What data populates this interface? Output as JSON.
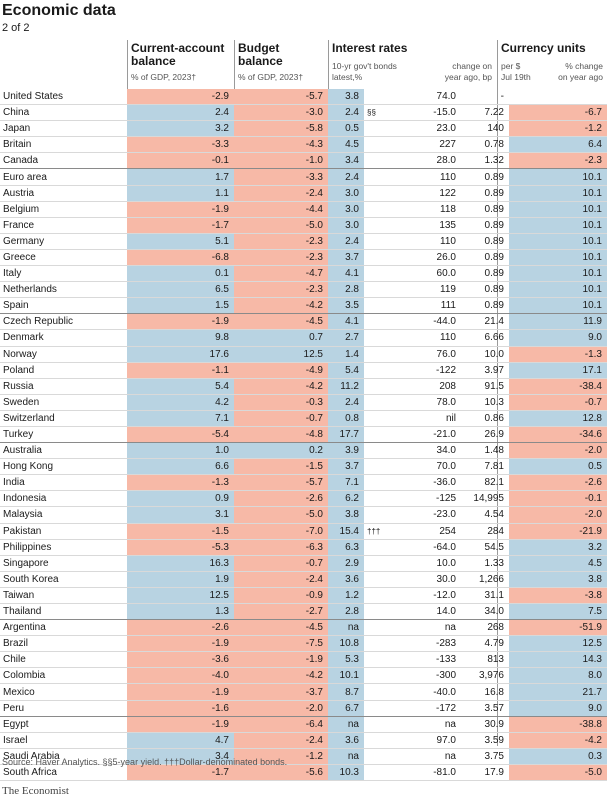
{
  "title": "Economic data",
  "subtitle": "2 of 2",
  "headers": {
    "current_account": "Current-account balance",
    "current_account_sub": "% of GDP, 2023†",
    "budget": "Budget balance",
    "budget_sub": "% of GDP, 2023†",
    "interest": "Interest rates",
    "interest_sub1": "10-yr gov't bonds",
    "interest_sub1b": "latest,%",
    "interest_sub2": "change on",
    "interest_sub2b": "year ago, bp",
    "currency": "Currency units",
    "currency_sub1": "per $",
    "currency_sub1b": "Jul 19th",
    "currency_sub2": "% change",
    "currency_sub2b": "on year ago"
  },
  "rows": [
    {
      "country": "United States",
      "ca": "-2.9",
      "budget": "-5.7",
      "bond": "3.8",
      "note": "",
      "bond_change": "74.0",
      "fx": "-",
      "fx_change": ""
    },
    {
      "country": "China",
      "ca": "2.4",
      "budget": "-3.0",
      "bond": "2.4",
      "note": "§§",
      "bond_change": "-15.0",
      "fx": "7.22",
      "fx_change": "-6.7"
    },
    {
      "country": "Japan",
      "ca": "3.2",
      "budget": "-5.8",
      "bond": "0.5",
      "note": "",
      "bond_change": "23.0",
      "fx": "140",
      "fx_change": "-1.2"
    },
    {
      "country": "Britain",
      "ca": "-3.3",
      "budget": "-4.3",
      "bond": "4.5",
      "note": "",
      "bond_change": "227",
      "fx": "0.78",
      "fx_change": "6.4"
    },
    {
      "country": "Canada",
      "ca": "-0.1",
      "budget": "-1.0",
      "bond": "3.4",
      "note": "",
      "bond_change": "28.0",
      "fx": "1.32",
      "fx_change": "-2.3"
    },
    {
      "country": "Euro area",
      "ca": "1.7",
      "budget": "-3.3",
      "bond": "2.4",
      "note": "",
      "bond_change": "110",
      "fx": "0.89",
      "fx_change": "10.1"
    },
    {
      "country": "Austria",
      "ca": "1.1",
      "budget": "-2.4",
      "bond": "3.0",
      "note": "",
      "bond_change": "122",
      "fx": "0.89",
      "fx_change": "10.1"
    },
    {
      "country": "Belgium",
      "ca": "-1.9",
      "budget": "-4.4",
      "bond": "3.0",
      "note": "",
      "bond_change": "118",
      "fx": "0.89",
      "fx_change": "10.1"
    },
    {
      "country": "France",
      "ca": "-1.7",
      "budget": "-5.0",
      "bond": "3.0",
      "note": "",
      "bond_change": "135",
      "fx": "0.89",
      "fx_change": "10.1"
    },
    {
      "country": "Germany",
      "ca": "5.1",
      "budget": "-2.3",
      "bond": "2.4",
      "note": "",
      "bond_change": "110",
      "fx": "0.89",
      "fx_change": "10.1"
    },
    {
      "country": "Greece",
      "ca": "-6.8",
      "budget": "-2.3",
      "bond": "3.7",
      "note": "",
      "bond_change": "26.0",
      "fx": "0.89",
      "fx_change": "10.1"
    },
    {
      "country": "Italy",
      "ca": "0.1",
      "budget": "-4.7",
      "bond": "4.1",
      "note": "",
      "bond_change": "60.0",
      "fx": "0.89",
      "fx_change": "10.1"
    },
    {
      "country": "Netherlands",
      "ca": "6.5",
      "budget": "-2.3",
      "bond": "2.8",
      "note": "",
      "bond_change": "119",
      "fx": "0.89",
      "fx_change": "10.1"
    },
    {
      "country": "Spain",
      "ca": "1.5",
      "budget": "-4.2",
      "bond": "3.5",
      "note": "",
      "bond_change": "111",
      "fx": "0.89",
      "fx_change": "10.1"
    },
    {
      "country": "Czech Republic",
      "ca": "-1.9",
      "budget": "-4.5",
      "bond": "4.1",
      "note": "",
      "bond_change": "-44.0",
      "fx": "21.4",
      "fx_change": "11.9"
    },
    {
      "country": "Denmark",
      "ca": "9.8",
      "budget": "0.7",
      "bond": "2.7",
      "note": "",
      "bond_change": "110",
      "fx": "6.66",
      "fx_change": "9.0"
    },
    {
      "country": "Norway",
      "ca": "17.6",
      "budget": "12.5",
      "bond": "1.4",
      "note": "",
      "bond_change": "76.0",
      "fx": "10.0",
      "fx_change": "-1.3"
    },
    {
      "country": "Poland",
      "ca": "-1.1",
      "budget": "-4.9",
      "bond": "5.4",
      "note": "",
      "bond_change": "-122",
      "fx": "3.97",
      "fx_change": "17.1"
    },
    {
      "country": "Russia",
      "ca": "5.4",
      "budget": "-4.2",
      "bond": "11.2",
      "note": "",
      "bond_change": "208",
      "fx": "91.5",
      "fx_change": "-38.4"
    },
    {
      "country": "Sweden",
      "ca": "4.2",
      "budget": "-0.3",
      "bond": "2.4",
      "note": "",
      "bond_change": "78.0",
      "fx": "10.3",
      "fx_change": "-0.7"
    },
    {
      "country": "Switzerland",
      "ca": "7.1",
      "budget": "-0.7",
      "bond": "0.8",
      "note": "",
      "bond_change": "nil",
      "fx": "0.86",
      "fx_change": "12.8"
    },
    {
      "country": "Turkey",
      "ca": "-5.4",
      "budget": "-4.8",
      "bond": "17.7",
      "note": "",
      "bond_change": "-21.0",
      "fx": "26.9",
      "fx_change": "-34.6"
    },
    {
      "country": "Australia",
      "ca": "1.0",
      "budget": "0.2",
      "bond": "3.9",
      "note": "",
      "bond_change": "34.0",
      "fx": "1.48",
      "fx_change": "-2.0"
    },
    {
      "country": "Hong Kong",
      "ca": "6.6",
      "budget": "-1.5",
      "bond": "3.7",
      "note": "",
      "bond_change": "70.0",
      "fx": "7.81",
      "fx_change": "0.5"
    },
    {
      "country": "India",
      "ca": "-1.3",
      "budget": "-5.7",
      "bond": "7.1",
      "note": "",
      "bond_change": "-36.0",
      "fx": "82.1",
      "fx_change": "-2.6"
    },
    {
      "country": "Indonesia",
      "ca": "0.9",
      "budget": "-2.6",
      "bond": "6.2",
      "note": "",
      "bond_change": "-125",
      "fx": "14,995",
      "fx_change": "-0.1"
    },
    {
      "country": "Malaysia",
      "ca": "3.1",
      "budget": "-5.0",
      "bond": "3.8",
      "note": "",
      "bond_change": "-23.0",
      "fx": "4.54",
      "fx_change": "-2.0"
    },
    {
      "country": "Pakistan",
      "ca": "-1.5",
      "budget": "-7.0",
      "bond": "15.4",
      "note": "†††",
      "bond_change": "254",
      "fx": "284",
      "fx_change": "-21.9"
    },
    {
      "country": "Philippines",
      "ca": "-5.3",
      "budget": "-6.3",
      "bond": "6.3",
      "note": "",
      "bond_change": "-64.0",
      "fx": "54.5",
      "fx_change": "3.2"
    },
    {
      "country": "Singapore",
      "ca": "16.3",
      "budget": "-0.7",
      "bond": "2.9",
      "note": "",
      "bond_change": "10.0",
      "fx": "1.33",
      "fx_change": "4.5"
    },
    {
      "country": "South Korea",
      "ca": "1.9",
      "budget": "-2.4",
      "bond": "3.6",
      "note": "",
      "bond_change": "30.0",
      "fx": "1,266",
      "fx_change": "3.8"
    },
    {
      "country": "Taiwan",
      "ca": "12.5",
      "budget": "-0.9",
      "bond": "1.2",
      "note": "",
      "bond_change": "-12.0",
      "fx": "31.1",
      "fx_change": "-3.8"
    },
    {
      "country": "Thailand",
      "ca": "1.3",
      "budget": "-2.7",
      "bond": "2.8",
      "note": "",
      "bond_change": "14.0",
      "fx": "34.0",
      "fx_change": "7.5"
    },
    {
      "country": "Argentina",
      "ca": "-2.6",
      "budget": "-4.5",
      "bond": "na",
      "note": "",
      "bond_change": "na",
      "fx": "268",
      "fx_change": "-51.9"
    },
    {
      "country": "Brazil",
      "ca": "-1.9",
      "budget": "-7.5",
      "bond": "10.8",
      "note": "",
      "bond_change": "-283",
      "fx": "4.79",
      "fx_change": "12.5"
    },
    {
      "country": "Chile",
      "ca": "-3.6",
      "budget": "-1.9",
      "bond": "5.3",
      "note": "",
      "bond_change": "-133",
      "fx": "813",
      "fx_change": "14.3"
    },
    {
      "country": "Colombia",
      "ca": "-4.0",
      "budget": "-4.2",
      "bond": "10.1",
      "note": "",
      "bond_change": "-300",
      "fx": "3,976",
      "fx_change": "8.0"
    },
    {
      "country": "Mexico",
      "ca": "-1.9",
      "budget": "-3.7",
      "bond": "8.7",
      "note": "",
      "bond_change": "-40.0",
      "fx": "16.8",
      "fx_change": "21.7"
    },
    {
      "country": "Peru",
      "ca": "-1.6",
      "budget": "-2.0",
      "bond": "6.7",
      "note": "",
      "bond_change": "-172",
      "fx": "3.57",
      "fx_change": "9.0"
    },
    {
      "country": "Egypt",
      "ca": "-1.9",
      "budget": "-6.4",
      "bond": "na",
      "note": "",
      "bond_change": "na",
      "fx": "30.9",
      "fx_change": "-38.8"
    },
    {
      "country": "Israel",
      "ca": "4.7",
      "budget": "-2.4",
      "bond": "3.6",
      "note": "",
      "bond_change": "97.0",
      "fx": "3.59",
      "fx_change": "-4.2"
    },
    {
      "country": "Saudi Arabia",
      "ca": "3.4",
      "budget": "-1.2",
      "bond": "na",
      "note": "",
      "bond_change": "na",
      "fx": "3.75",
      "fx_change": "0.3"
    },
    {
      "country": "South Africa",
      "ca": "-1.7",
      "budget": "-5.6",
      "bond": "10.3",
      "note": "",
      "bond_change": "-81.0",
      "fx": "17.9",
      "fx_change": "-5.0"
    }
  ],
  "group_ends": [
    "Canada",
    "Spain",
    "Turkey",
    "Thailand",
    "Peru"
  ],
  "colors": {
    "positive": "#b8d3e2",
    "negative": "#f7b9a7"
  },
  "footer": "Source: Haver Analytics. §§5-year yield. †††Dollar-denominated bonds.",
  "brand": "The Economist"
}
